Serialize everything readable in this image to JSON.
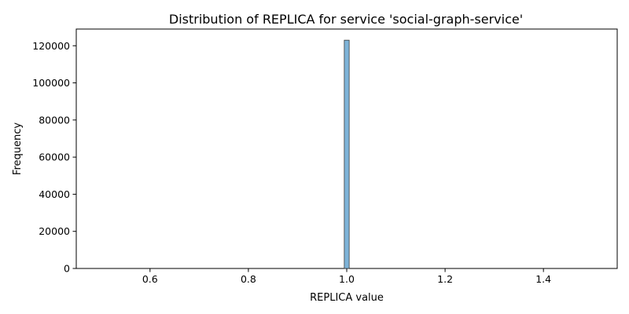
{
  "chart_data": {
    "type": "bar",
    "title": "Distribution of REPLICA for service 'social-graph-service'",
    "xlabel": "REPLICA value",
    "ylabel": "Frequency",
    "xlim": [
      0.45,
      1.55
    ],
    "ylim": [
      0,
      129000
    ],
    "x_ticks": [
      "0.6",
      "0.8",
      "1.0",
      "1.2",
      "1.4"
    ],
    "x_tick_values": [
      0.6,
      0.8,
      1.0,
      1.2,
      1.4
    ],
    "y_ticks": [
      "0",
      "20000",
      "40000",
      "60000",
      "80000",
      "100000",
      "120000"
    ],
    "y_tick_values": [
      0,
      20000,
      40000,
      60000,
      80000,
      100000,
      120000
    ],
    "bins": [
      {
        "x_start": 0.995,
        "x_end": 1.005,
        "value": 123000
      }
    ],
    "grid": false,
    "colors": {
      "bar_fill": "#7eb3d8",
      "bar_stroke": "#3a3a3a"
    }
  }
}
